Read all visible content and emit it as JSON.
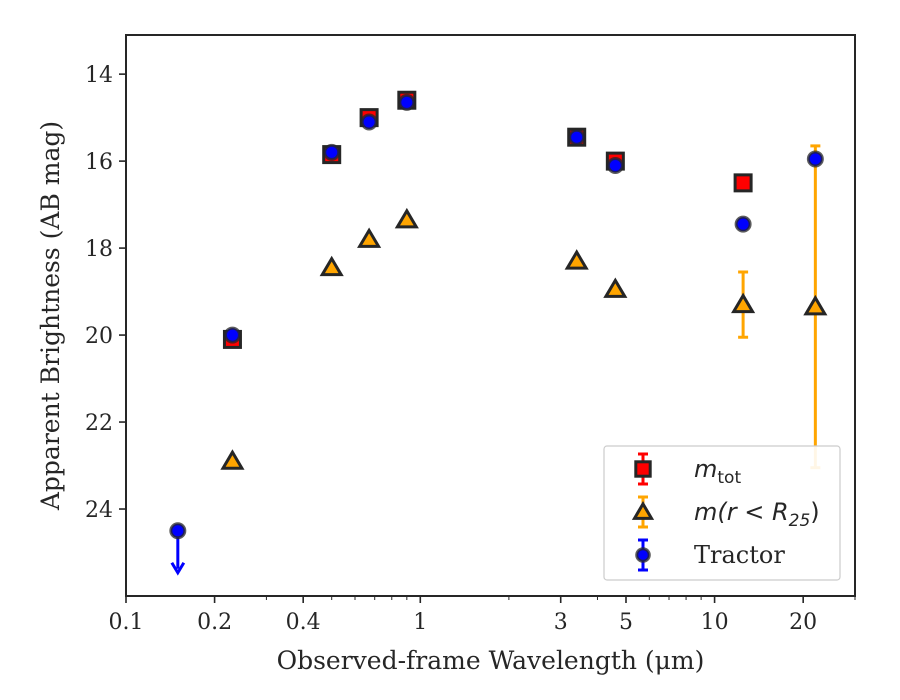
{
  "chart_data": {
    "type": "scatter",
    "xscale": "log",
    "yinverted": true,
    "xlim": [
      0.1,
      30
    ],
    "ylim": [
      26.0,
      13.1
    ],
    "xlabel": "Observed-frame Wavelength (μm)",
    "ylabel": "Apparent Brightness (AB mag)",
    "x_ticks": [
      0.1,
      0.2,
      0.4,
      1,
      3,
      5,
      10,
      20
    ],
    "x_tick_labels": [
      "0.1",
      "0.2",
      "0.4",
      "1",
      "3",
      "5",
      "10",
      "20"
    ],
    "y_ticks": [
      14,
      16,
      18,
      20,
      22,
      24
    ],
    "y_tick_labels": [
      "14",
      "16",
      "18",
      "20",
      "22",
      "24"
    ],
    "legend_position": "lower right",
    "series": [
      {
        "name": "m_tot",
        "legend_label": {
          "main": "m",
          "sub": "tot"
        },
        "marker": "square",
        "color": "#ff0000",
        "edge_color": "#262626",
        "x": [
          0.23,
          0.5,
          0.67,
          0.9,
          3.4,
          4.6,
          12.5
        ],
        "y": [
          20.1,
          15.85,
          15.0,
          14.6,
          15.45,
          16.0,
          16.5
        ],
        "yerr": [
          0,
          0,
          0,
          0,
          0,
          0,
          0
        ]
      },
      {
        "name": "m(r < R25)",
        "legend_label": {
          "main": "m(r < R",
          "sub": "25",
          "tail": ")"
        },
        "marker": "triangle",
        "color": "#ffa500",
        "edge_color": "#262626",
        "x": [
          0.23,
          0.5,
          0.67,
          0.9,
          3.4,
          4.6,
          12.5,
          22
        ],
        "y": [
          22.9,
          18.45,
          17.8,
          17.35,
          18.3,
          18.95,
          19.3,
          19.35
        ],
        "yerr": [
          0,
          0,
          0,
          0,
          0,
          0,
          0.75,
          3.7
        ]
      },
      {
        "name": "Tractor",
        "legend_label": {
          "main": "Tractor"
        },
        "marker": "circle",
        "color": "#0000ff",
        "edge_color": "#262626",
        "x": [
          0.15,
          0.23,
          0.5,
          0.67,
          0.9,
          3.4,
          4.6,
          12.5,
          22
        ],
        "y": [
          24.5,
          20.0,
          15.8,
          15.1,
          14.65,
          15.45,
          16.1,
          17.45,
          15.95
        ],
        "yerr": [
          0,
          0,
          0,
          0,
          0,
          0,
          0,
          0,
          0
        ],
        "upper_limit": [
          true,
          false,
          false,
          false,
          false,
          false,
          false,
          false,
          false
        ]
      }
    ]
  }
}
